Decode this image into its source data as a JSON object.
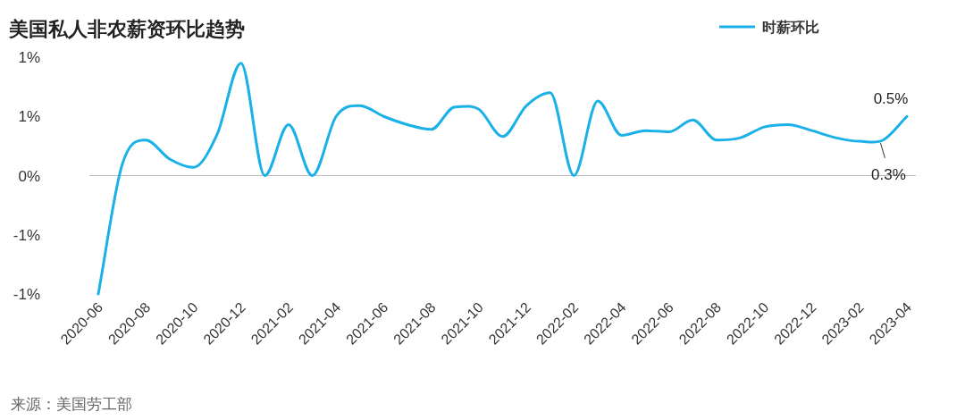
{
  "chart_data": {
    "type": "line",
    "title": "美国私人非农薪资环比趋势",
    "x": [
      "2020-06",
      "2020-07",
      "2020-08",
      "2020-09",
      "2020-10",
      "2020-11",
      "2020-12",
      "2021-01",
      "2021-02",
      "2021-03",
      "2021-04",
      "2021-05",
      "2021-06",
      "2021-07",
      "2021-08",
      "2021-09",
      "2021-10",
      "2021-11",
      "2021-12",
      "2022-01",
      "2022-02",
      "2022-03",
      "2022-04",
      "2022-05",
      "2022-06",
      "2022-07",
      "2022-08",
      "2022-09",
      "2022-10",
      "2022-11",
      "2022-12",
      "2023-01",
      "2023-02",
      "2023-03",
      "2023-04"
    ],
    "series": [
      {
        "name": "时薪环比",
        "color": "#1ab0e8",
        "values": [
          -1.0,
          0.09,
          0.3,
          0.14,
          0.07,
          0.35,
          0.95,
          0.0,
          0.43,
          0.0,
          0.5,
          0.59,
          0.5,
          0.43,
          0.39,
          0.58,
          0.56,
          0.33,
          0.59,
          0.7,
          0.0,
          0.63,
          0.34,
          0.38,
          0.37,
          0.47,
          0.3,
          0.32,
          0.41,
          0.43,
          0.38,
          0.32,
          0.29,
          0.3,
          0.5
        ],
        "value_labels": [
          null,
          null,
          null,
          null,
          null,
          null,
          null,
          null,
          null,
          null,
          null,
          null,
          null,
          null,
          null,
          null,
          null,
          null,
          null,
          null,
          null,
          null,
          null,
          null,
          null,
          null,
          null,
          null,
          null,
          null,
          null,
          null,
          null,
          "0.3%",
          "0.5%"
        ]
      }
    ],
    "xlim": [
      "2020-06",
      "2023-04"
    ],
    "xticks": [
      "2020-06",
      "2020-08",
      "2020-10",
      "2020-12",
      "2021-02",
      "2021-04",
      "2021-06",
      "2021-08",
      "2021-10",
      "2021-12",
      "2022-02",
      "2022-04",
      "2022-06",
      "2022-08",
      "2022-10",
      "2022-12",
      "2023-02",
      "2023-04"
    ],
    "ylim": [
      -1,
      1
    ],
    "yticks": [
      {
        "value": 1,
        "label": "1%"
      },
      {
        "value": 0.5,
        "label": "1%"
      },
      {
        "value": 0,
        "label": "0%"
      },
      {
        "value": -0.5,
        "label": "-1%"
      },
      {
        "value": -1,
        "label": "-1%"
      }
    ],
    "legend": "top right",
    "ref_lines": [
      {
        "axis": "y",
        "value": 0,
        "color": "#bbbbbb"
      }
    ],
    "grid": false,
    "marker": "none",
    "line_style": "solid",
    "annotations": [
      "来源：美国劳工部"
    ]
  }
}
